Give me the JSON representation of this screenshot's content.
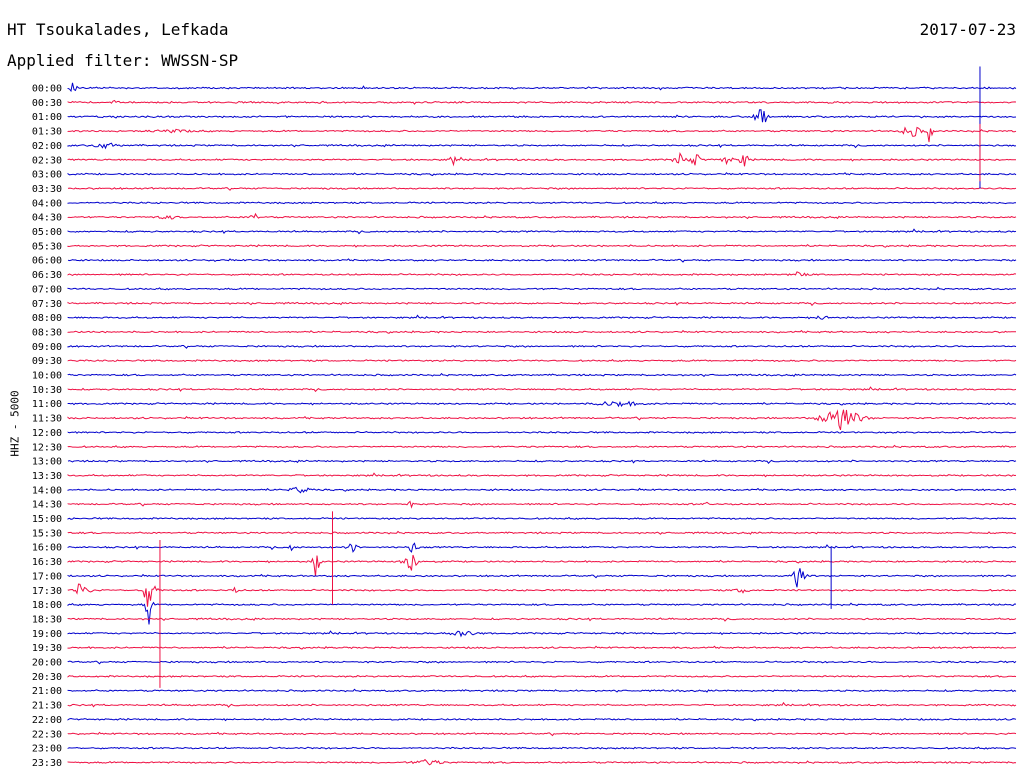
{
  "header": {
    "station": "HT Tsoukalades, Lefkada",
    "filter": "Applied filter: WWSSN-SP",
    "date": "2017-07-23"
  },
  "chart_data": {
    "type": "line",
    "title": "HT Tsoukalades, Lefkada",
    "subtitle": "Applied filter: WWSSN-SP",
    "ylabel": "HHZ - 5000",
    "row_labels": [
      "00:00",
      "00:30",
      "01:00",
      "01:30",
      "02:00",
      "02:30",
      "03:00",
      "03:30",
      "04:00",
      "04:30",
      "05:00",
      "05:30",
      "06:00",
      "06:30",
      "07:00",
      "07:30",
      "08:00",
      "08:30",
      "09:00",
      "09:30",
      "10:00",
      "10:30",
      "11:00",
      "11:30",
      "12:00",
      "12:30",
      "13:00",
      "13:30",
      "14:00",
      "14:30",
      "15:00",
      "15:30",
      "16:00",
      "16:30",
      "17:00",
      "17:30",
      "18:00",
      "18:30",
      "19:00",
      "19:30",
      "20:00",
      "20:30",
      "21:00",
      "21:30",
      "22:00",
      "22:30",
      "23:00",
      "23:30"
    ],
    "colors": [
      "#0000cc",
      "#ee1144"
    ],
    "grid": false,
    "events": [
      {
        "row": 0,
        "x": 0.005,
        "amp": 18,
        "w": 0.002
      },
      {
        "row": 1,
        "x": 0.05,
        "amp": 3,
        "w": 0.004
      },
      {
        "row": 2,
        "x": 0.73,
        "amp": 14,
        "w": 0.004
      },
      {
        "row": 2,
        "x": 0.735,
        "amp": 8,
        "w": 0.003
      },
      {
        "row": 3,
        "x": 0.11,
        "amp": 2,
        "w": 0.03
      },
      {
        "row": 3,
        "x": 0.89,
        "amp": 8,
        "w": 0.008
      },
      {
        "row": 3,
        "x": 0.908,
        "amp": 12,
        "w": 0.003
      },
      {
        "row": 4,
        "x": 0.04,
        "amp": 4,
        "w": 0.012
      },
      {
        "row": 5,
        "x": 0.405,
        "amp": 12,
        "w": 0.002
      },
      {
        "row": 5,
        "x": 0.646,
        "amp": 9,
        "w": 0.005
      },
      {
        "row": 5,
        "x": 0.662,
        "amp": 9,
        "w": 0.004
      },
      {
        "row": 5,
        "x": 0.695,
        "amp": 5,
        "w": 0.006
      },
      {
        "row": 5,
        "x": 0.713,
        "amp": 12,
        "w": 0.003
      },
      {
        "row": 9,
        "x": 0.1,
        "amp": 4,
        "w": 0.004
      },
      {
        "row": 9,
        "x": 0.111,
        "amp": 3,
        "w": 0.004
      },
      {
        "row": 9,
        "x": 0.196,
        "amp": 7,
        "w": 0.003
      },
      {
        "row": 12,
        "x": 0.157,
        "amp": 4,
        "w": 0.002
      },
      {
        "row": 13,
        "x": 0.77,
        "amp": 3,
        "w": 0.01
      },
      {
        "row": 16,
        "x": 0.796,
        "amp": 5,
        "w": 0.004
      },
      {
        "row": 22,
        "x": 0.58,
        "amp": 4,
        "w": 0.02
      },
      {
        "row": 23,
        "x": 0.815,
        "amp": 18,
        "w": 0.012
      },
      {
        "row": 28,
        "x": 0.245,
        "amp": 4,
        "w": 0.01
      },
      {
        "row": 29,
        "x": 0.361,
        "amp": 6,
        "w": 0.002
      },
      {
        "row": 29,
        "x": 0.674,
        "amp": 4,
        "w": 0.002
      },
      {
        "row": 32,
        "x": 0.236,
        "amp": 6,
        "w": 0.003
      },
      {
        "row": 32,
        "x": 0.299,
        "amp": 7,
        "w": 0.004
      },
      {
        "row": 32,
        "x": 0.363,
        "amp": 8,
        "w": 0.004
      },
      {
        "row": 33,
        "x": 0.262,
        "amp": 26,
        "w": 0.002
      },
      {
        "row": 33,
        "x": 0.362,
        "amp": 14,
        "w": 0.005
      },
      {
        "row": 34,
        "x": 0.77,
        "amp": 22,
        "w": 0.004
      },
      {
        "row": 35,
        "x": 0.015,
        "amp": 18,
        "w": 0.004
      },
      {
        "row": 35,
        "x": 0.085,
        "amp": 22,
        "w": 0.004
      },
      {
        "row": 35,
        "x": 0.175,
        "amp": 5,
        "w": 0.003
      },
      {
        "row": 35,
        "x": 0.712,
        "amp": 3,
        "w": 0.008
      },
      {
        "row": 36,
        "x": 0.085,
        "amp": 30,
        "w": 0.002
      },
      {
        "row": 38,
        "x": 0.418,
        "amp": 5,
        "w": 0.012
      },
      {
        "row": 47,
        "x": 0.38,
        "amp": 4,
        "w": 0.014
      }
    ],
    "spikes": [
      {
        "row": 4,
        "x": 0.912,
        "label": "vertical spike rows 0-7"
      },
      {
        "row": 33,
        "x": 0.262,
        "label": "vertical spike rows 30-36"
      },
      {
        "row": 36,
        "x": 0.085,
        "label": "vertical spike rows 33-42"
      },
      {
        "row": 34,
        "x": 0.77,
        "label": "vertical spike rows 32-36"
      }
    ]
  }
}
